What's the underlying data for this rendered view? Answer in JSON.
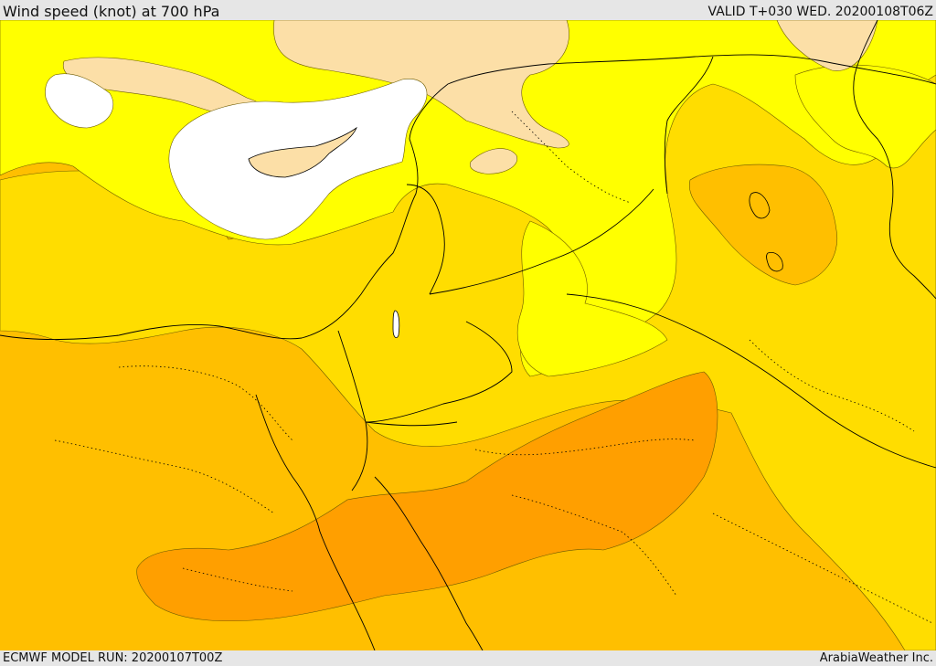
{
  "header": {
    "title": "Wind speed (knot) at 700 hPa",
    "valid": "VALID T+030 WED. 20200108T06Z"
  },
  "footer": {
    "model_run": "ECMWF MODEL RUN: 20200107T00Z",
    "credit": "ArabiaWeather Inc."
  },
  "colors": {
    "calm": "#ffffff",
    "pale": "#fcdfa7",
    "yellow": "#ffff00",
    "gold": "#ffdd00",
    "amber": "#ffbf00",
    "orange": "#ff9f00",
    "border": "#000000"
  }
}
